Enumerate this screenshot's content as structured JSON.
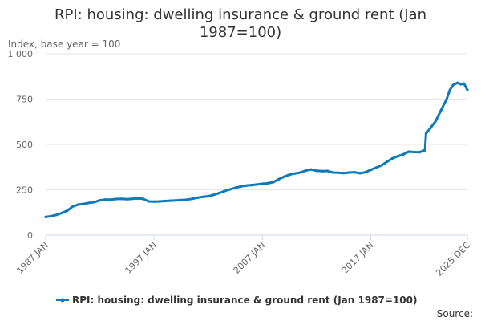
{
  "chart_data": {
    "type": "line",
    "title_lines": [
      "RPI: housing: dwelling insurance & ground rent (Jan",
      "1987=100)"
    ],
    "ylabel": "Index, base year = 100",
    "ylim": [
      0,
      1000
    ],
    "yticks": [
      0,
      250,
      500,
      750,
      1000
    ],
    "ytick_labels": [
      "0",
      "250",
      "500",
      "750",
      "1 000"
    ],
    "xlim": [
      1987.0,
      2025.917
    ],
    "xticks": [
      1987.0,
      1997.0,
      2007.0,
      2017.0,
      2025.917
    ],
    "xtick_labels": [
      "1987 JAN",
      "1997 JAN",
      "2007 JAN",
      "2017 JAN",
      "2025 DEC"
    ],
    "grid": "horizontal",
    "legend_position": "bottom",
    "source_label": "Source:",
    "color": "#0f7ab8",
    "series": [
      {
        "name": "RPI: housing: dwelling insurance & ground rent (Jan 1987=100)",
        "x": [
          1987.0,
          1987.5,
          1988.0,
          1988.5,
          1989.0,
          1989.5,
          1990.0,
          1990.5,
          1991.0,
          1991.5,
          1992.0,
          1992.5,
          1993.0,
          1993.5,
          1994.0,
          1994.5,
          1995.0,
          1995.5,
          1996.0,
          1996.5,
          1997.0,
          1997.5,
          1998.0,
          1998.5,
          1999.0,
          1999.5,
          2000.0,
          2000.5,
          2001.0,
          2001.5,
          2002.0,
          2002.5,
          2003.0,
          2003.5,
          2004.0,
          2004.5,
          2005.0,
          2005.5,
          2006.0,
          2006.5,
          2007.0,
          2007.5,
          2008.0,
          2008.5,
          2009.0,
          2009.5,
          2010.0,
          2010.5,
          2011.0,
          2011.5,
          2012.0,
          2012.5,
          2013.0,
          2013.5,
          2014.0,
          2014.5,
          2015.0,
          2015.5,
          2016.0,
          2016.5,
          2017.0,
          2017.5,
          2018.0,
          2018.5,
          2019.0,
          2019.5,
          2020.0,
          2020.5,
          2021.0,
          2021.5,
          2022.0,
          2022.1,
          2022.5,
          2023.0,
          2023.5,
          2024.0,
          2024.3,
          2024.6,
          2025.0,
          2025.3,
          2025.6,
          2025.917
        ],
        "values": [
          100,
          105,
          112,
          122,
          135,
          158,
          168,
          172,
          178,
          182,
          192,
          196,
          196,
          199,
          200,
          198,
          200,
          202,
          200,
          186,
          185,
          186,
          188,
          190,
          191,
          193,
          195,
          200,
          206,
          211,
          214,
          222,
          232,
          243,
          252,
          261,
          268,
          273,
          276,
          279,
          283,
          286,
          292,
          308,
          322,
          333,
          340,
          345,
          356,
          362,
          355,
          353,
          354,
          345,
          344,
          342,
          345,
          347,
          341,
          347,
          360,
          372,
          385,
          405,
          423,
          435,
          445,
          460,
          458,
          457,
          468,
          560,
          590,
          630,
          690,
          750,
          800,
          828,
          840,
          832,
          836,
          800
        ]
      }
    ]
  }
}
